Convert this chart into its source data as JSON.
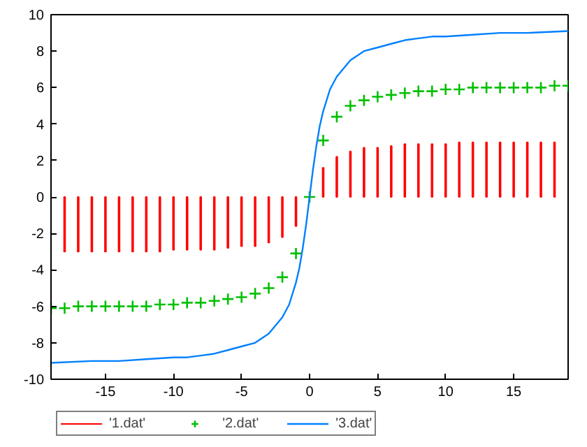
{
  "chart_data": {
    "type": "line",
    "xlim": [
      -19,
      19
    ],
    "ylim": [
      -10,
      10
    ],
    "xticks": [
      -15,
      -10,
      -5,
      0,
      5,
      10,
      15
    ],
    "yticks": [
      -10,
      -8,
      -6,
      -4,
      -2,
      0,
      2,
      4,
      6,
      8,
      10
    ],
    "grid": false,
    "legend": "bottom",
    "series": [
      {
        "name": "'1.dat'",
        "type": "bar",
        "color": "#ff0000",
        "x": [
          -18,
          -17,
          -16,
          -15,
          -14,
          -13,
          -12,
          -11,
          -10,
          -9,
          -8,
          -7,
          -6,
          -5,
          -4,
          -3,
          -2,
          -1,
          0,
          1,
          2,
          3,
          4,
          5,
          6,
          7,
          8,
          9,
          10,
          11,
          12,
          13,
          14,
          15,
          16,
          17,
          18
        ],
        "values": [
          -3.0,
          -3.0,
          -3.0,
          -3.0,
          -3.0,
          -3.0,
          -3.0,
          -3.0,
          -2.9,
          -2.9,
          -2.9,
          -2.9,
          -2.8,
          -2.7,
          -2.7,
          -2.5,
          -2.2,
          -1.6,
          0,
          1.6,
          2.2,
          2.5,
          2.7,
          2.7,
          2.8,
          2.9,
          2.9,
          2.9,
          2.9,
          3.0,
          3.0,
          3.0,
          3.0,
          3.0,
          3.0,
          3.0,
          3.0
        ]
      },
      {
        "name": "'2.dat'",
        "type": "scatter",
        "marker": "cross",
        "color": "#00c000",
        "x": [
          -19,
          -18,
          -17,
          -16,
          -15,
          -14,
          -13,
          -12,
          -11,
          -10,
          -9,
          -8,
          -7,
          -6,
          -5,
          -4,
          -3,
          -2,
          -1,
          0,
          1,
          2,
          3,
          4,
          5,
          6,
          7,
          8,
          9,
          10,
          11,
          12,
          13,
          14,
          15,
          16,
          17,
          18,
          19
        ],
        "values": [
          -6.1,
          -6.1,
          -6.0,
          -6.0,
          -6.0,
          -6.0,
          -6.0,
          -6.0,
          -5.9,
          -5.9,
          -5.8,
          -5.8,
          -5.7,
          -5.6,
          -5.5,
          -5.3,
          -5.0,
          -4.4,
          -3.1,
          0,
          3.1,
          4.4,
          5.0,
          5.3,
          5.5,
          5.6,
          5.7,
          5.8,
          5.8,
          5.9,
          5.9,
          6.0,
          6.0,
          6.0,
          6.0,
          6.0,
          6.0,
          6.1,
          6.1
        ]
      },
      {
        "name": "'3.dat'",
        "color": "#0080ff",
        "x": [
          -19,
          -16,
          -14,
          -12,
          -10,
          -9,
          -8,
          -7,
          -6,
          -5,
          -4,
          -3,
          -2,
          -1.5,
          -1,
          -0.75,
          -0.5,
          -0.25,
          0,
          0.25,
          0.5,
          0.75,
          1,
          1.5,
          2,
          3,
          4,
          5,
          6,
          7,
          8,
          9,
          10,
          12,
          14,
          16,
          19
        ],
        "values": [
          -9.1,
          -9.0,
          -9.0,
          -8.9,
          -8.8,
          -8.8,
          -8.7,
          -8.6,
          -8.4,
          -8.2,
          -8.0,
          -7.5,
          -6.6,
          -5.9,
          -4.7,
          -3.9,
          -2.8,
          -1.5,
          0,
          1.5,
          2.8,
          3.9,
          4.7,
          5.9,
          6.6,
          7.5,
          8.0,
          8.2,
          8.4,
          8.6,
          8.7,
          8.8,
          8.8,
          8.9,
          9.0,
          9.0,
          9.1
        ]
      }
    ]
  }
}
